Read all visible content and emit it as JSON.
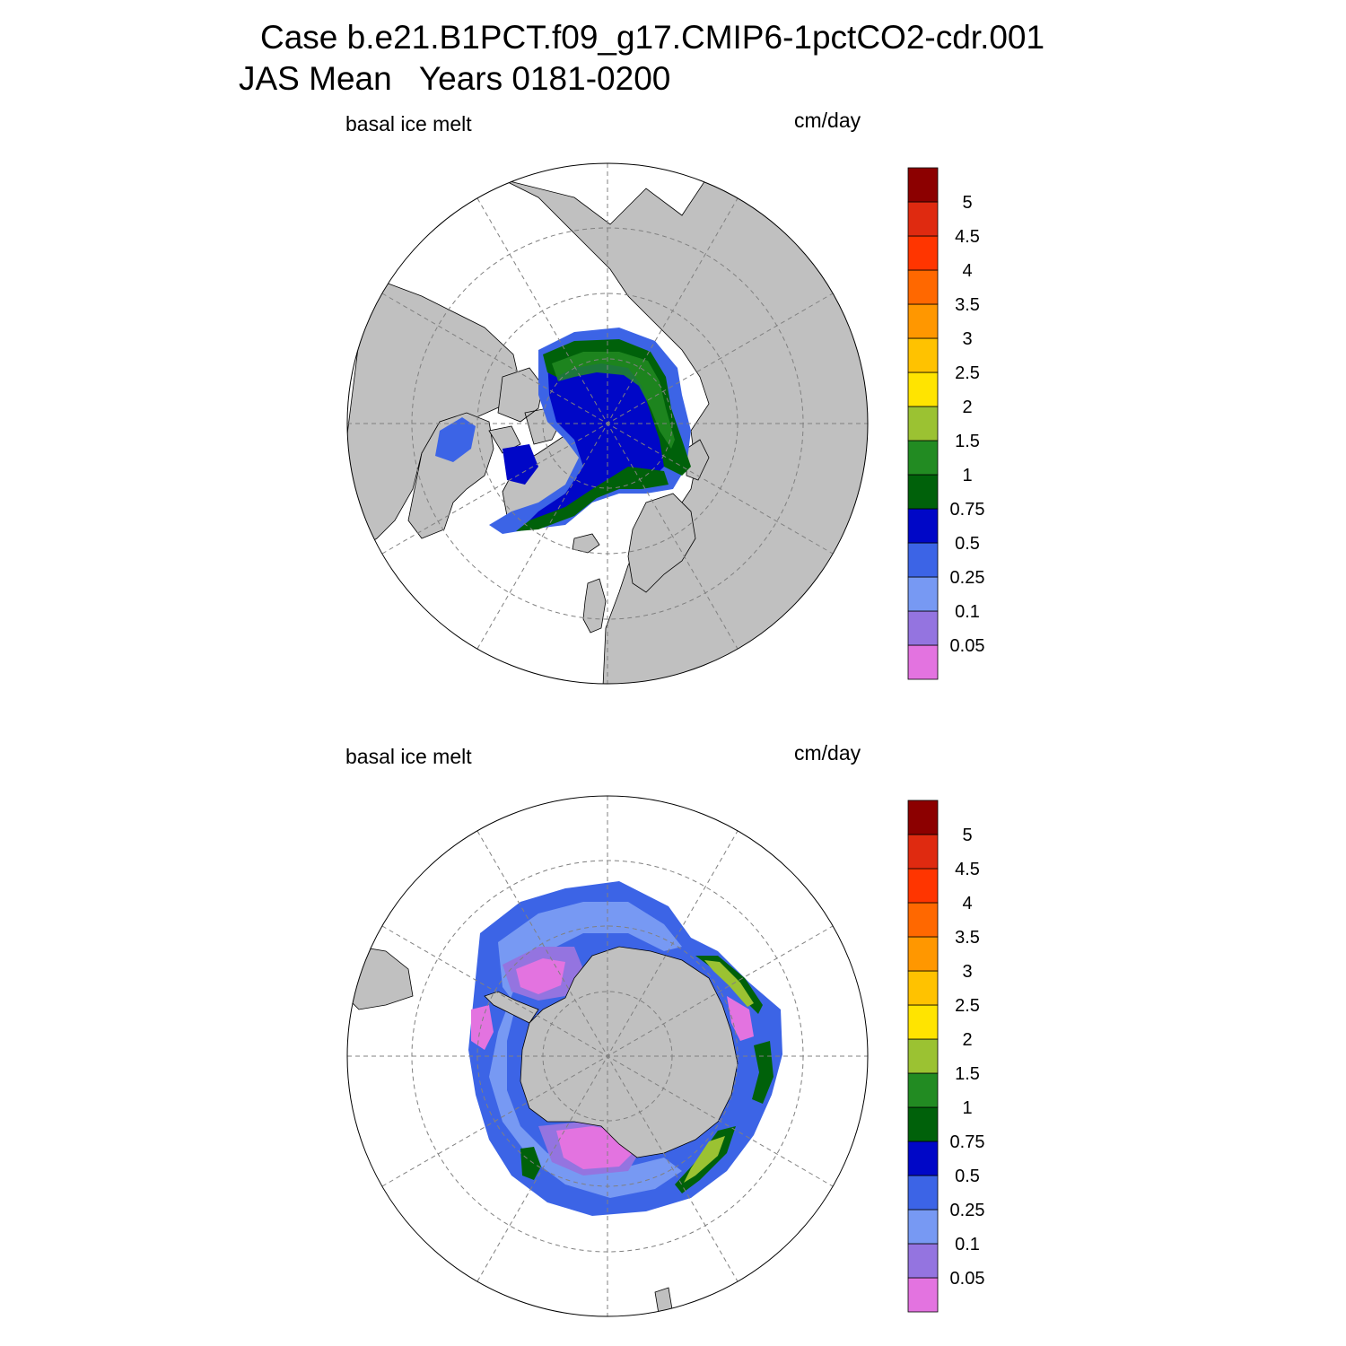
{
  "header": {
    "line1": "Case b.e21.B1PCT.f09_g17.CMIP6-1pctCO2-cdr.001",
    "line2": "JAS Mean   Years 0181-0200"
  },
  "colorbar": {
    "levels": [
      "0.05",
      "0.1",
      "0.25",
      "0.5",
      "0.75",
      "1",
      "1.5",
      "2",
      "2.5",
      "3",
      "3.5",
      "4",
      "4.5",
      "5"
    ],
    "colors": [
      "#e373e0",
      "#9474e0",
      "#7799f3",
      "#3c64e6",
      "#0007c7",
      "#00610a",
      "#228b22",
      "#9bc232",
      "#ffe400",
      "#ffc200",
      "#ff9700",
      "#ff6800",
      "#ff3500",
      "#df2a10",
      "#8c0000"
    ]
  },
  "colors": {
    "land": "#c0c0c0",
    "grid": "#808080"
  },
  "panels": [
    {
      "id": "north",
      "hemisphere": "Northern",
      "left_label": "basal ice melt",
      "right_label": "cm/day"
    },
    {
      "id": "south",
      "hemisphere": "Southern",
      "left_label": "basal ice melt",
      "right_label": "cm/day"
    }
  ]
}
